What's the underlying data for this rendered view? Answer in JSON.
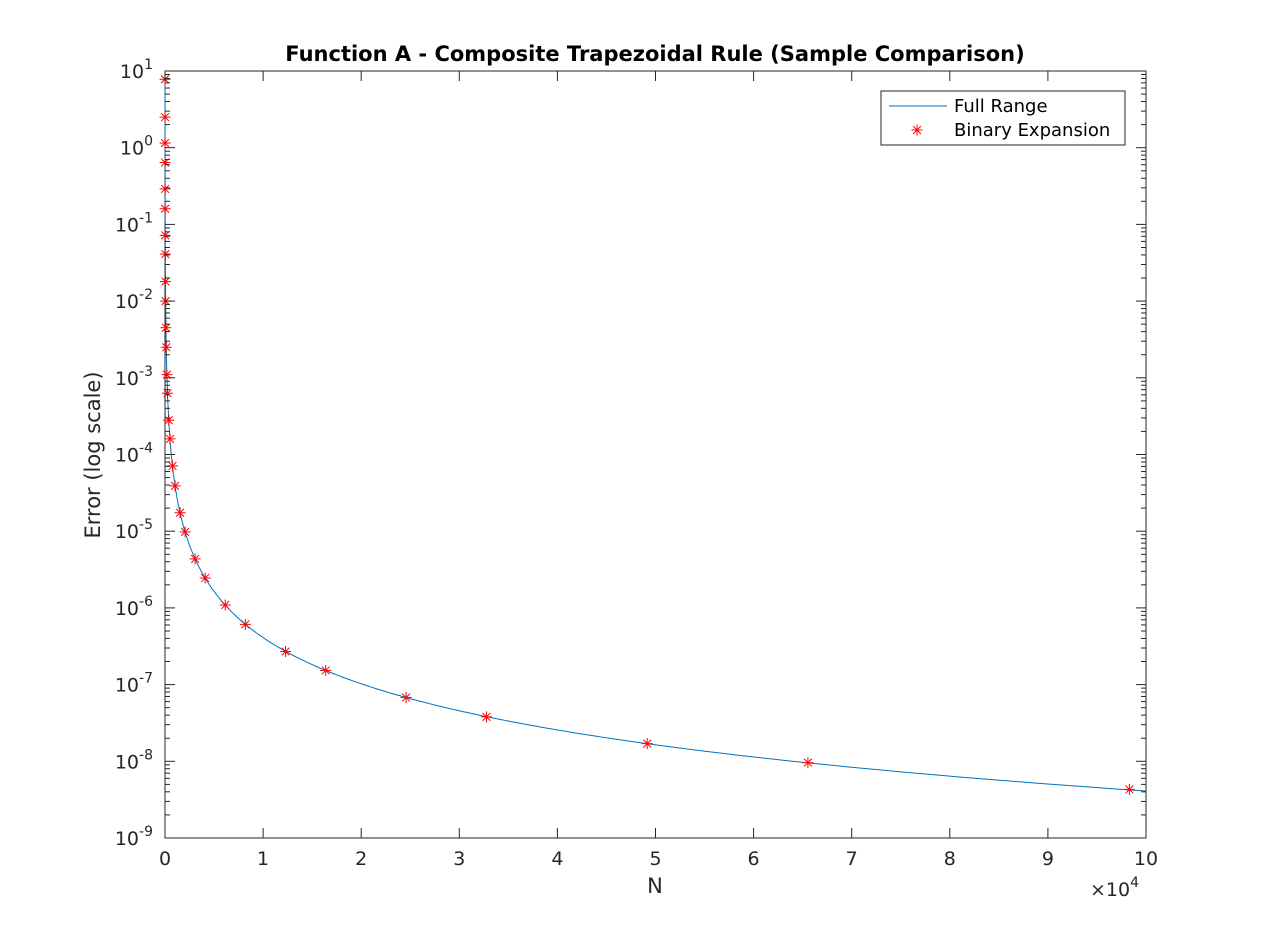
{
  "chart_data": {
    "type": "line",
    "title": "Function A - Composite Trapezoidal Rule (Sample Comparison)",
    "xlabel": "N",
    "ylabel": "Error (log scale)",
    "xlim": [
      0,
      100000
    ],
    "ylim": [
      1e-09,
      10
    ],
    "yscale": "log",
    "x_multiplier_label": {
      "base": "×10",
      "exp": "4"
    },
    "xticks": [
      0,
      10000,
      20000,
      30000,
      40000,
      50000,
      60000,
      70000,
      80000,
      90000,
      100000
    ],
    "xtick_labels": [
      "0",
      "1",
      "2",
      "3",
      "4",
      "5",
      "6",
      "7",
      "8",
      "9",
      "10"
    ],
    "yticks": [
      {
        "value": 10,
        "base": "10",
        "exp": "1"
      },
      {
        "value": 1,
        "base": "10",
        "exp": "0"
      },
      {
        "value": 0.1,
        "base": "10",
        "exp": "-1"
      },
      {
        "value": 0.01,
        "base": "10",
        "exp": "-2"
      },
      {
        "value": 0.001,
        "base": "10",
        "exp": "-3"
      },
      {
        "value": 0.0001,
        "base": "10",
        "exp": "-4"
      },
      {
        "value": 1e-05,
        "base": "10",
        "exp": "-5"
      },
      {
        "value": 1e-06,
        "base": "10",
        "exp": "-6"
      },
      {
        "value": 1e-07,
        "base": "10",
        "exp": "-7"
      },
      {
        "value": 1e-08,
        "base": "10",
        "exp": "-8"
      },
      {
        "value": 1e-09,
        "base": "10",
        "exp": "-9"
      }
    ],
    "grid": false,
    "legend_position": "top-right",
    "series": [
      {
        "name": "Full Range",
        "style": "line",
        "color": "#0072BD",
        "model": {
          "c": 41.0,
          "p": 2
        },
        "x_range": [
          1,
          100000
        ]
      },
      {
        "name": "Binary Expansion",
        "style": "markers",
        "marker": "asterisk",
        "color": "#FF0000",
        "points": [
          [
            2,
            7.8
          ],
          [
            4,
            2.5
          ],
          [
            6,
            1.15
          ],
          [
            8,
            0.64
          ],
          [
            12,
            0.29
          ],
          [
            16,
            0.16
          ],
          [
            24,
            0.072
          ],
          [
            32,
            0.041
          ],
          [
            48,
            0.018
          ],
          [
            64,
            0.01
          ],
          [
            96,
            0.0045
          ],
          [
            128,
            0.0025
          ],
          [
            192,
            0.0011
          ],
          [
            256,
            0.00063
          ],
          [
            384,
            0.00028
          ],
          [
            512,
            0.00016
          ],
          [
            768,
            7.1e-05
          ],
          [
            1024,
            3.9e-05
          ],
          [
            1536,
            1.74e-05
          ],
          [
            2048,
            9.8e-06
          ],
          [
            3072,
            4.35e-06
          ],
          [
            4096,
            2.45e-06
          ],
          [
            6144,
            1.09e-06
          ],
          [
            8192,
            6.1e-07
          ],
          [
            12288,
            2.7e-07
          ],
          [
            16384,
            1.53e-07
          ],
          [
            24576,
            6.8e-08
          ],
          [
            32768,
            3.8e-08
          ],
          [
            49152,
            1.7e-08
          ],
          [
            65536,
            9.6e-09
          ],
          [
            98304,
            4.3e-09
          ]
        ]
      }
    ]
  }
}
